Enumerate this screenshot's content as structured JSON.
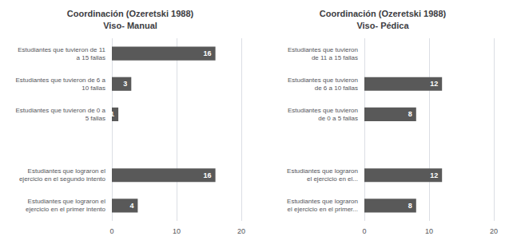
{
  "chart_data": [
    {
      "type": "bar",
      "orientation": "horizontal",
      "title": "Coordinación (Ozeretski 1988)\nViso- Manual",
      "categories": [
        "Estudiantes que tuvieron de 11\na 15 fallas",
        "Estudiantes que tuvieron de 6 a\n10 fallas",
        "Estudiantes que tuvieron de 0 a\n5 fallas",
        null,
        "Estudiantes que lograron el\nejercicio en el segundo intento",
        "Estudiantes que lograron el\nejercicio en el primer intento"
      ],
      "values": [
        16,
        3,
        1,
        null,
        16,
        4
      ],
      "color": "#595959",
      "xlim": [
        0,
        20
      ],
      "xticks": [
        0,
        10,
        20
      ],
      "grid": true,
      "data_labels": true
    },
    {
      "type": "bar",
      "orientation": "horizontal",
      "title": "Coordinación (Ozeretski 1988)\nViso- Pédica",
      "categories": [
        "Estudiantes que tuvieron\nde 11 a 15 fallas",
        "Estudiantes que tuvieron\nde 6 a 10 fallas",
        "Estudiantes que tuvieron\nde 0 a 5 fallas",
        null,
        "Estudiantes que lograron\nel ejercicio en el...",
        "Estudiantes que lograron\nel ejercicio en el primer..."
      ],
      "values": [
        null,
        12,
        8,
        null,
        12,
        8
      ],
      "color": "#595959",
      "xlim": [
        0,
        20
      ],
      "xticks": [
        0,
        10,
        20
      ],
      "grid": true,
      "data_labels": true
    }
  ]
}
